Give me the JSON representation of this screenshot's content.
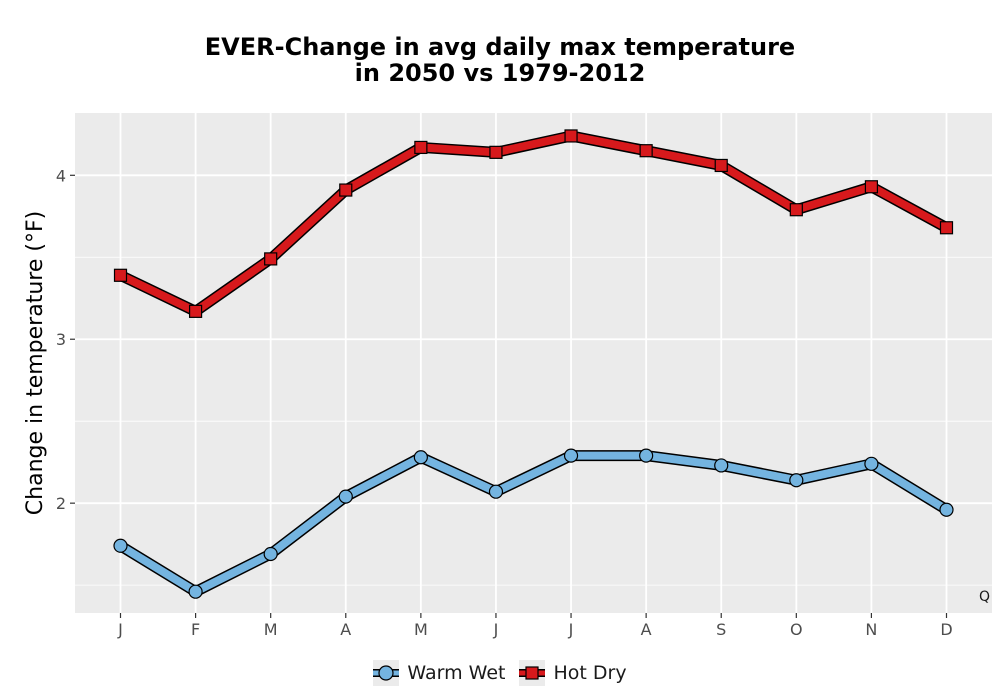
{
  "chart_data": {
    "type": "line",
    "title_line1": "EVER-Change in avg daily max temperature",
    "title_line2": "in 2050 vs 1979-2012",
    "xlabel": "",
    "ylabel": "Change in temperature (°F)",
    "categories": [
      "J",
      "F",
      "M",
      "A",
      "M",
      "J",
      "J",
      "A",
      "S",
      "O",
      "N",
      "D"
    ],
    "ylim": [
      1.33,
      4.38
    ],
    "yticks": [
      2,
      3,
      4
    ],
    "ytick_labels": [
      "2",
      "3",
      "4"
    ],
    "grid": true,
    "legend_position": "bottom",
    "corner_note": "Q",
    "series": [
      {
        "name": "Warm Wet",
        "marker": "circle",
        "color": "#74b4e0",
        "values": [
          1.74,
          1.46,
          1.69,
          2.04,
          2.28,
          2.07,
          2.29,
          2.29,
          2.23,
          2.14,
          2.24,
          1.96
        ]
      },
      {
        "name": "Hot Dry",
        "marker": "square",
        "color": "#d7191c",
        "values": [
          3.39,
          3.17,
          3.49,
          3.91,
          4.17,
          4.14,
          4.24,
          4.15,
          4.06,
          3.79,
          3.93,
          3.68
        ]
      }
    ]
  }
}
